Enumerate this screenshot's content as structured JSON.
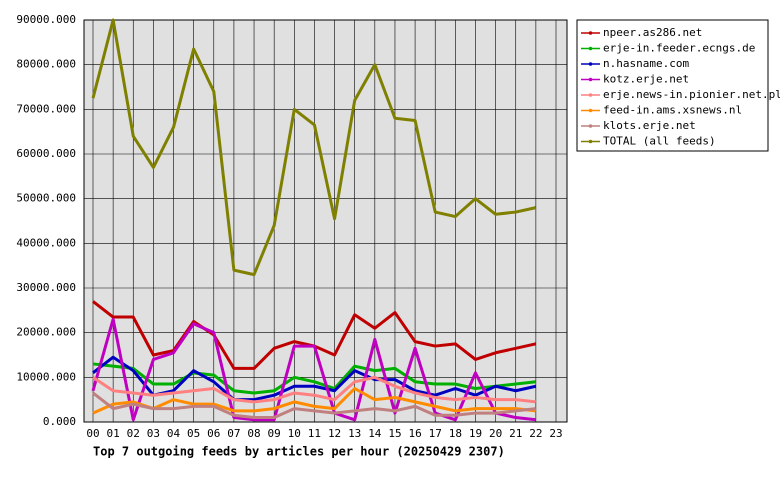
{
  "chart_data": {
    "type": "line",
    "title": "Top 7 outgoing feeds by articles per hour (20250429 2307)",
    "categories": [
      "00",
      "01",
      "02",
      "03",
      "04",
      "05",
      "06",
      "07",
      "08",
      "09",
      "10",
      "11",
      "12",
      "13",
      "14",
      "15",
      "16",
      "17",
      "18",
      "19",
      "20",
      "21",
      "22",
      "23"
    ],
    "ylim": [
      0,
      90000
    ],
    "yticks": [
      {
        "value": 0,
        "label": "0.000"
      },
      {
        "value": 10000,
        "label": "10000.000"
      },
      {
        "value": 20000,
        "label": "20000.000"
      },
      {
        "value": 30000,
        "label": "30000.000"
      },
      {
        "value": 40000,
        "label": "40000.000"
      },
      {
        "value": 50000,
        "label": "50000.000"
      },
      {
        "value": 60000,
        "label": "60000.000"
      },
      {
        "value": 70000,
        "label": "70000.000"
      },
      {
        "value": 80000,
        "label": "80000.000"
      },
      {
        "value": 90000,
        "label": "90000.000"
      }
    ],
    "grid": true,
    "legend": "outside-right",
    "series": [
      {
        "name": "npeer.as286.net",
        "color": "#c00000",
        "values": [
          27000,
          23500,
          23500,
          15000,
          16000,
          22500,
          19500,
          12000,
          12000,
          16500,
          18000,
          17000,
          15000,
          24000,
          21000,
          24500,
          18000,
          17000,
          17500,
          14000,
          15500,
          16500,
          17500,
          null
        ]
      },
      {
        "name": "erje-in.feeder.ecngs.de",
        "color": "#00b000",
        "values": [
          13000,
          12500,
          12000,
          8500,
          8500,
          11000,
          10500,
          7000,
          6500,
          7000,
          10000,
          9000,
          7500,
          12500,
          11500,
          12000,
          9000,
          8500,
          8500,
          7500,
          8000,
          8500,
          9000,
          null
        ]
      },
      {
        "name": "n.hasname.com",
        "color": "#0000c0",
        "values": [
          11000,
          14500,
          11500,
          6000,
          7000,
          11500,
          9000,
          5000,
          5000,
          6000,
          8000,
          8000,
          7000,
          11500,
          9500,
          9500,
          7000,
          6000,
          7500,
          6000,
          8000,
          7000,
          8000,
          null
        ]
      },
      {
        "name": "kotz.erje.net",
        "color": "#c000c0",
        "values": [
          7000,
          23000,
          500,
          14000,
          15500,
          22000,
          20000,
          1000,
          500,
          500,
          17000,
          17000,
          2000,
          500,
          18500,
          2000,
          16500,
          2000,
          500,
          11000,
          2000,
          1000,
          500,
          null
        ]
      },
      {
        "name": "erje.news-in.pionier.net.pl",
        "color": "#ff8080",
        "values": [
          10000,
          7000,
          6500,
          6000,
          6500,
          7000,
          7500,
          5000,
          4500,
          5000,
          6500,
          6000,
          5000,
          9000,
          10000,
          8000,
          6500,
          5500,
          5000,
          5500,
          5000,
          5000,
          4500,
          null
        ]
      },
      {
        "name": "feed-in.ams.xsnews.nl",
        "color": "#ff8c00",
        "values": [
          2000,
          4000,
          4500,
          3000,
          5000,
          4000,
          4000,
          2500,
          2500,
          3000,
          4500,
          3500,
          3000,
          7500,
          5000,
          5500,
          4500,
          3500,
          2500,
          3000,
          3000,
          3000,
          2500,
          null
        ]
      },
      {
        "name": "klots.erje.net",
        "color": "#c08080",
        "values": [
          6500,
          3000,
          4000,
          3000,
          3000,
          3500,
          3500,
          1500,
          1000,
          1000,
          3000,
          2500,
          2000,
          2500,
          3000,
          2500,
          3500,
          1500,
          1500,
          2000,
          2000,
          2500,
          3000,
          null
        ]
      },
      {
        "name": "TOTAL (all feeds)",
        "color": "#808000",
        "values": [
          72500,
          90000,
          64000,
          57000,
          66000,
          83500,
          74000,
          34000,
          33000,
          44000,
          70000,
          66500,
          45500,
          72000,
          80000,
          68000,
          67500,
          47000,
          46000,
          50000,
          46500,
          47000,
          48000,
          null
        ]
      }
    ]
  }
}
